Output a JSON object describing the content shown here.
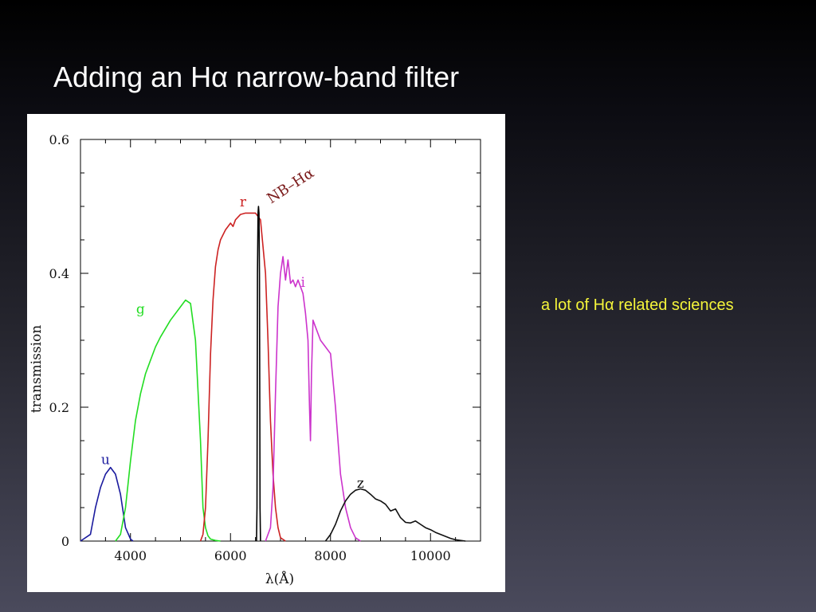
{
  "slide": {
    "title": "Adding an Hα narrow-band filter",
    "note": "a lot of Hα related sciences"
  },
  "chart_data": {
    "type": "line",
    "xlabel": "λ(Å)",
    "ylabel": "transmission",
    "xlim": [
      3000,
      11000
    ],
    "ylim": [
      0,
      0.6
    ],
    "x_ticks": [
      4000,
      6000,
      8000,
      10000
    ],
    "y_ticks": [
      0,
      0.2,
      0.4,
      0.6
    ],
    "grid": false,
    "legend": "inline labels next to each curve",
    "series": [
      {
        "name": "u",
        "color": "#1a1a9e",
        "x": [
          3000,
          3200,
          3300,
          3400,
          3500,
          3600,
          3700,
          3800,
          3900,
          4000,
          4050
        ],
        "y": [
          0,
          0.01,
          0.05,
          0.08,
          0.1,
          0.11,
          0.1,
          0.07,
          0.02,
          0.003,
          0
        ]
      },
      {
        "name": "g",
        "color": "#22dd22",
        "x": [
          3700,
          3800,
          3900,
          4000,
          4100,
          4200,
          4300,
          4400,
          4500,
          4600,
          4800,
          5000,
          5100,
          5200,
          5300,
          5400,
          5450,
          5500,
          5550,
          5600,
          5700,
          5800
        ],
        "y": [
          0,
          0.01,
          0.05,
          0.12,
          0.18,
          0.22,
          0.25,
          0.27,
          0.29,
          0.305,
          0.33,
          0.35,
          0.36,
          0.355,
          0.3,
          0.15,
          0.05,
          0.02,
          0.008,
          0.003,
          0.001,
          0
        ]
      },
      {
        "name": "r",
        "color": "#cc2222",
        "x": [
          5400,
          5450,
          5500,
          5550,
          5600,
          5650,
          5700,
          5750,
          5800,
          5900,
          6000,
          6050,
          6100,
          6200,
          6300,
          6400,
          6500,
          6600,
          6700,
          6750,
          6800,
          6850,
          6900,
          6950,
          7000,
          7100
        ],
        "y": [
          0,
          0.01,
          0.05,
          0.15,
          0.28,
          0.36,
          0.41,
          0.435,
          0.45,
          0.465,
          0.475,
          0.47,
          0.48,
          0.488,
          0.49,
          0.49,
          0.49,
          0.48,
          0.4,
          0.3,
          0.18,
          0.1,
          0.05,
          0.02,
          0.005,
          0
        ]
      },
      {
        "name": "i",
        "color": "#cc33cc",
        "x": [
          6700,
          6800,
          6850,
          6900,
          6950,
          7000,
          7050,
          7100,
          7150,
          7200,
          7250,
          7300,
          7350,
          7400,
          7450,
          7500,
          7550,
          7580,
          7600,
          7620,
          7650,
          7700,
          7800,
          7900,
          8000,
          8100,
          8200,
          8300,
          8400,
          8500,
          8600
        ],
        "y": [
          0,
          0.02,
          0.08,
          0.22,
          0.35,
          0.4,
          0.425,
          0.39,
          0.42,
          0.385,
          0.39,
          0.38,
          0.39,
          0.38,
          0.37,
          0.34,
          0.3,
          0.2,
          0.15,
          0.25,
          0.33,
          0.32,
          0.3,
          0.29,
          0.28,
          0.2,
          0.1,
          0.05,
          0.02,
          0.005,
          0
        ]
      },
      {
        "name": "z",
        "color": "#111111",
        "x": [
          7900,
          8000,
          8100,
          8200,
          8300,
          8400,
          8500,
          8600,
          8700,
          8800,
          8900,
          9000,
          9100,
          9200,
          9300,
          9400,
          9500,
          9600,
          9700,
          9800,
          9900,
          10000,
          10100,
          10200,
          10300,
          10400,
          10500,
          10600,
          10700
        ],
        "y": [
          0,
          0.01,
          0.025,
          0.045,
          0.06,
          0.07,
          0.076,
          0.078,
          0.076,
          0.07,
          0.063,
          0.06,
          0.055,
          0.045,
          0.048,
          0.035,
          0.028,
          0.027,
          0.03,
          0.025,
          0.02,
          0.017,
          0.013,
          0.01,
          0.007,
          0.004,
          0.002,
          0.001,
          0
        ]
      },
      {
        "name": "NB–Hα",
        "color": "#000000",
        "x": [
          6520,
          6530,
          6540,
          6550,
          6560,
          6570,
          6580,
          6590,
          6600
        ],
        "y": [
          0,
          0.05,
          0.4,
          0.49,
          0.5,
          0.49,
          0.4,
          0.05,
          0
        ]
      }
    ],
    "label_positions": {
      "u": [
        3500,
        0.115
      ],
      "g": [
        4200,
        0.34
      ],
      "r": [
        6250,
        0.5
      ],
      "i": [
        7450,
        0.38
      ],
      "z": [
        8600,
        0.08
      ],
      "NB–Hα": [
        7250,
        0.525
      ]
    }
  }
}
